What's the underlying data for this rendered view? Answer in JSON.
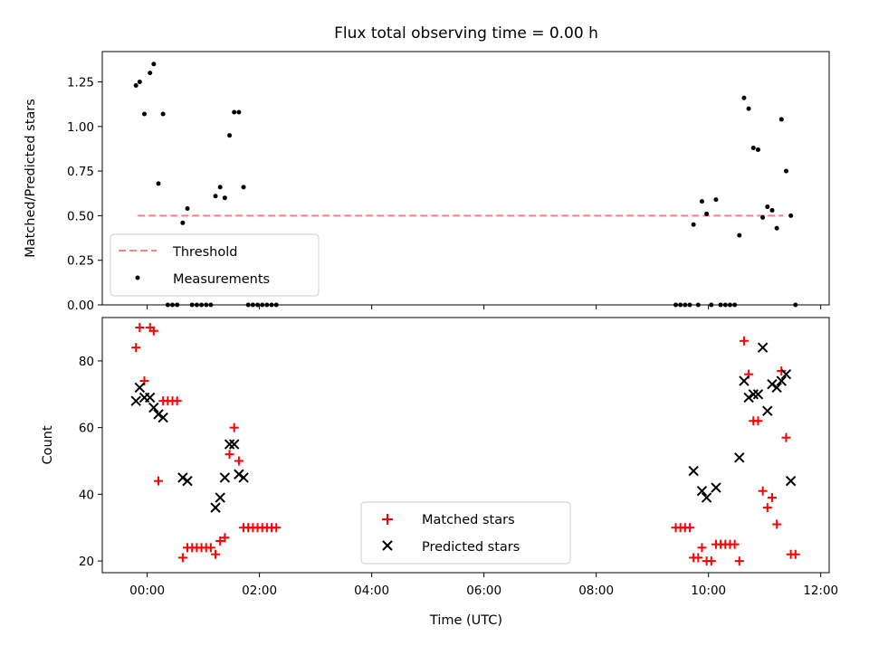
{
  "chart_data": {
    "type": "scatter",
    "title": "Flux total observing time = 0.00 h",
    "xlabel": "Time (UTC)",
    "x_ticks": [
      "00:00",
      "02:00",
      "04:00",
      "06:00",
      "08:00",
      "10:00",
      "12:00"
    ],
    "xlim_hours": [
      -0.8,
      12.15
    ],
    "panels": [
      {
        "ylabel": "Matched/Predicted stars",
        "ylim": [
          0,
          1.42
        ],
        "y_ticks": [
          "0.00",
          "0.25",
          "0.50",
          "0.75",
          "1.00",
          "1.25"
        ],
        "legend_position": "lower-left",
        "threshold": {
          "name": "Threshold",
          "value": 0.5,
          "x_range": [
            "23:50",
            "11:20"
          ],
          "color": "#ff8080",
          "style": "dashed"
        },
        "series": [
          {
            "name": "Measurements",
            "marker": "dot",
            "color": "#000000",
            "points": [
              [
                "23:48",
                1.23
              ],
              [
                "23:52",
                1.25
              ],
              [
                "23:57",
                1.07
              ],
              [
                "00:03",
                1.3
              ],
              [
                "00:07",
                1.35
              ],
              [
                "00:12",
                0.68
              ],
              [
                "00:17",
                1.07
              ],
              [
                "00:22",
                0.0
              ],
              [
                "00:27",
                0.0
              ],
              [
                "00:32",
                0.0
              ],
              [
                "00:38",
                0.46
              ],
              [
                "00:43",
                0.54
              ],
              [
                "00:48",
                0.0
              ],
              [
                "00:53",
                0.0
              ],
              [
                "00:58",
                0.0
              ],
              [
                "01:03",
                0.0
              ],
              [
                "01:08",
                0.0
              ],
              [
                "01:13",
                0.61
              ],
              [
                "01:18",
                0.66
              ],
              [
                "01:23",
                0.6
              ],
              [
                "01:28",
                0.95
              ],
              [
                "01:33",
                1.08
              ],
              [
                "01:38",
                1.08
              ],
              [
                "01:43",
                0.66
              ],
              [
                "01:48",
                0.0
              ],
              [
                "01:53",
                0.0
              ],
              [
                "01:58",
                0.0
              ],
              [
                "02:03",
                0.0
              ],
              [
                "02:08",
                0.0
              ],
              [
                "02:13",
                0.0
              ],
              [
                "02:18",
                0.0
              ],
              [
                "09:25",
                0.0
              ],
              [
                "09:30",
                0.0
              ],
              [
                "09:35",
                0.0
              ],
              [
                "09:40",
                0.0
              ],
              [
                "09:44",
                0.45
              ],
              [
                "09:49",
                0.0
              ],
              [
                "09:53",
                0.58
              ],
              [
                "09:58",
                0.51
              ],
              [
                "10:03",
                0.0
              ],
              [
                "10:08",
                0.59
              ],
              [
                "10:13",
                0.0
              ],
              [
                "10:18",
                0.0
              ],
              [
                "10:23",
                0.0
              ],
              [
                "10:28",
                0.0
              ],
              [
                "10:33",
                0.39
              ],
              [
                "10:38",
                1.16
              ],
              [
                "10:43",
                1.1
              ],
              [
                "10:48",
                0.88
              ],
              [
                "10:53",
                0.87
              ],
              [
                "10:58",
                0.49
              ],
              [
                "11:03",
                0.55
              ],
              [
                "11:08",
                0.53
              ],
              [
                "11:13",
                0.43
              ],
              [
                "11:18",
                1.04
              ],
              [
                "11:23",
                0.75
              ],
              [
                "11:28",
                0.5
              ],
              [
                "11:33",
                0.0
              ]
            ]
          }
        ]
      },
      {
        "ylabel": "Count",
        "ylim": [
          16.5,
          93
        ],
        "y_ticks": [
          "20",
          "40",
          "60",
          "80"
        ],
        "legend_position": "lower-center",
        "series": [
          {
            "name": "Matched stars",
            "marker": "plus",
            "color": "#ff0000",
            "points": [
              [
                "23:48",
                84
              ],
              [
                "23:52",
                90
              ],
              [
                "23:57",
                74
              ],
              [
                "00:03",
                90
              ],
              [
                "00:07",
                89
              ],
              [
                "00:12",
                44
              ],
              [
                "00:17",
                68
              ],
              [
                "00:22",
                68
              ],
              [
                "00:27",
                68
              ],
              [
                "00:32",
                68
              ],
              [
                "00:38",
                21
              ],
              [
                "00:43",
                24
              ],
              [
                "00:48",
                24
              ],
              [
                "00:53",
                24
              ],
              [
                "00:58",
                24
              ],
              [
                "01:03",
                24
              ],
              [
                "01:08",
                24
              ],
              [
                "01:13",
                22
              ],
              [
                "01:18",
                26
              ],
              [
                "01:23",
                27
              ],
              [
                "01:28",
                52
              ],
              [
                "01:33",
                60
              ],
              [
                "01:38",
                50
              ],
              [
                "01:43",
                30
              ],
              [
                "01:48",
                30
              ],
              [
                "01:53",
                30
              ],
              [
                "01:58",
                30
              ],
              [
                "02:03",
                30
              ],
              [
                "02:08",
                30
              ],
              [
                "02:13",
                30
              ],
              [
                "02:18",
                30
              ],
              [
                "09:25",
                30
              ],
              [
                "09:30",
                30
              ],
              [
                "09:35",
                30
              ],
              [
                "09:40",
                30
              ],
              [
                "09:44",
                21
              ],
              [
                "09:49",
                21
              ],
              [
                "09:53",
                24
              ],
              [
                "09:58",
                20
              ],
              [
                "10:03",
                20
              ],
              [
                "10:08",
                25
              ],
              [
                "10:13",
                25
              ],
              [
                "10:18",
                25
              ],
              [
                "10:23",
                25
              ],
              [
                "10:28",
                25
              ],
              [
                "10:33",
                20
              ],
              [
                "10:38",
                86
              ],
              [
                "10:43",
                76
              ],
              [
                "10:48",
                62
              ],
              [
                "10:53",
                62
              ],
              [
                "10:58",
                41
              ],
              [
                "11:03",
                36
              ],
              [
                "11:08",
                39
              ],
              [
                "11:13",
                31
              ],
              [
                "11:18",
                77
              ],
              [
                "11:23",
                57
              ],
              [
                "11:28",
                22
              ],
              [
                "11:33",
                22
              ]
            ]
          },
          {
            "name": "Predicted stars",
            "marker": "x",
            "color": "#000000",
            "points": [
              [
                "23:48",
                68
              ],
              [
                "23:52",
                72
              ],
              [
                "23:57",
                69
              ],
              [
                "00:03",
                69
              ],
              [
                "00:07",
                66
              ],
              [
                "00:12",
                64
              ],
              [
                "00:17",
                63
              ],
              [
                "00:38",
                45
              ],
              [
                "00:43",
                44
              ],
              [
                "01:13",
                36
              ],
              [
                "01:18",
                39
              ],
              [
                "01:23",
                45
              ],
              [
                "01:28",
                55
              ],
              [
                "01:33",
                55
              ],
              [
                "01:38",
                46
              ],
              [
                "01:43",
                45
              ],
              [
                "09:44",
                47
              ],
              [
                "09:53",
                41
              ],
              [
                "09:58",
                39
              ],
              [
                "10:08",
                42
              ],
              [
                "10:33",
                51
              ],
              [
                "10:38",
                74
              ],
              [
                "10:43",
                69
              ],
              [
                "10:48",
                70
              ],
              [
                "10:53",
                70
              ],
              [
                "10:58",
                84
              ],
              [
                "11:03",
                65
              ],
              [
                "11:08",
                73
              ],
              [
                "11:13",
                72
              ],
              [
                "11:18",
                74
              ],
              [
                "11:23",
                76
              ],
              [
                "11:28",
                44
              ]
            ]
          }
        ]
      }
    ]
  }
}
